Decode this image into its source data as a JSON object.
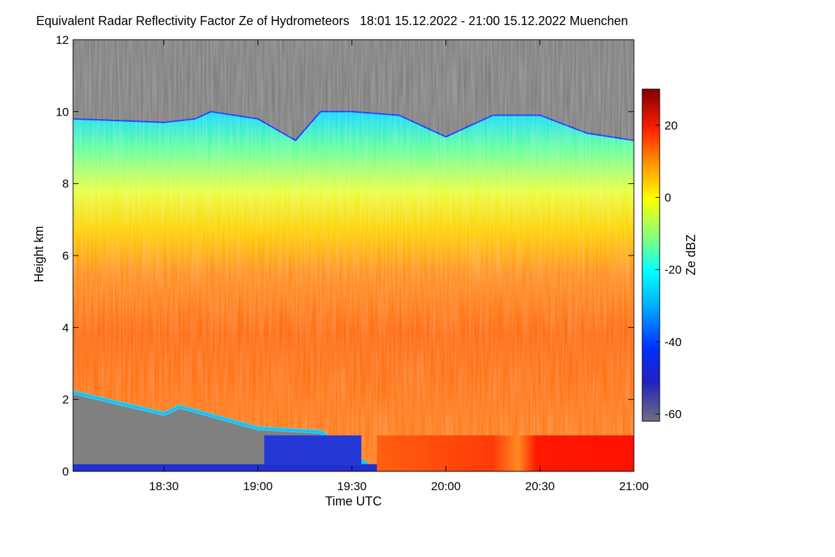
{
  "chart_data": {
    "type": "heatmap",
    "title": "Equivalent Radar Reflectivity Factor Ze of Hydrometeors",
    "period": "18:01 15.12.2022 - 21:00 15.12.2022",
    "location": "Muenchen",
    "xlabel": "Time UTC",
    "ylabel": "Height km",
    "x_ticks": [
      "18:30",
      "19:00",
      "19:30",
      "20:00",
      "20:30",
      "21:00"
    ],
    "x_range": [
      "18:01",
      "21:00"
    ],
    "y_ticks": [
      "0",
      "2",
      "4",
      "6",
      "8",
      "10",
      "12"
    ],
    "ylim": [
      0,
      12
    ],
    "colorbar": {
      "label": "Ze dBZ",
      "ticks": [
        "20",
        "0",
        "-20",
        "-40",
        "-60"
      ],
      "range": [
        -62,
        30
      ]
    },
    "grid": false,
    "echo_top_km": [
      {
        "time": "18:01",
        "top": 9.8
      },
      {
        "time": "18:30",
        "top": 9.7
      },
      {
        "time": "18:40",
        "top": 9.8
      },
      {
        "time": "18:45",
        "top": 10.0
      },
      {
        "time": "19:00",
        "top": 9.8
      },
      {
        "time": "19:12",
        "top": 9.2
      },
      {
        "time": "19:20",
        "top": 10.0
      },
      {
        "time": "19:30",
        "top": 10.0
      },
      {
        "time": "19:45",
        "top": 9.9
      },
      {
        "time": "20:00",
        "top": 9.3
      },
      {
        "time": "20:15",
        "top": 9.9
      },
      {
        "time": "20:30",
        "top": 9.9
      },
      {
        "time": "20:45",
        "top": 9.4
      },
      {
        "time": "21:00",
        "top": 9.2
      }
    ],
    "precip_base_km": [
      {
        "time": "18:01",
        "base": 2.2
      },
      {
        "time": "18:30",
        "base": 1.6
      },
      {
        "time": "18:35",
        "base": 1.8
      },
      {
        "time": "19:00",
        "base": 1.2
      },
      {
        "time": "19:20",
        "base": 1.1
      },
      {
        "time": "19:38",
        "base": 0.0
      },
      {
        "time": "21:00",
        "base": 0.0
      }
    ],
    "melting_layer_km": [
      0.2,
      1.0
    ]
  }
}
